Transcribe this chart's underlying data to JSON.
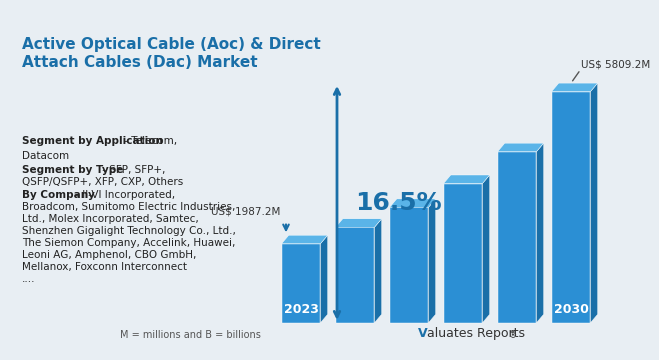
{
  "title": "Active Optical Cable (Aoc) & Direct\nAttach Cables (Dac) Market",
  "title_color": "#1a6fa8",
  "background_color": "#e8eef3",
  "bar_years": [
    "2023",
    "",
    "",
    "",
    "",
    "2030"
  ],
  "bar_values": [
    1987.2,
    2400,
    2900,
    3500,
    4300,
    5809.2
  ],
  "bar_color_face": "#2b8fd4",
  "bar_color_top": "#5ab4e8",
  "bar_color_side": "#1a6fa8",
  "start_label": "US$ 1987.2M",
  "end_label": "US$ 5809.2M",
  "cagr_label": "16.5%",
  "cagr_color": "#1a6fa8",
  "left_text": [
    {
      "bold": "Segment by Application",
      "normal": " - Telecom,\nDatacom"
    },
    {
      "bold": "Segment by Type",
      "normal": " - SFP, SFP+,\nQSFP/QSFP+, XFP, CXP, Others"
    },
    {
      "bold": "By Company",
      "normal": " - II-VI Incorporated,\nBroadcom, Sumitomo Electric Industries,\nLtd., Molex Incorporated, Samtec,\nShenzhen Gigalight Technology Co., Ltd.,\nThe Siemon Company, Accelink, Huawei,\nLeoni AG, Amphenol, CBO GmbH,\nMellanox, Foxconn Interconnect\n...."
    }
  ],
  "footer_text": "M = millions and B = billions",
  "logo_text": "Valuates Reports",
  "logo_v_color": "#1a6fa8"
}
